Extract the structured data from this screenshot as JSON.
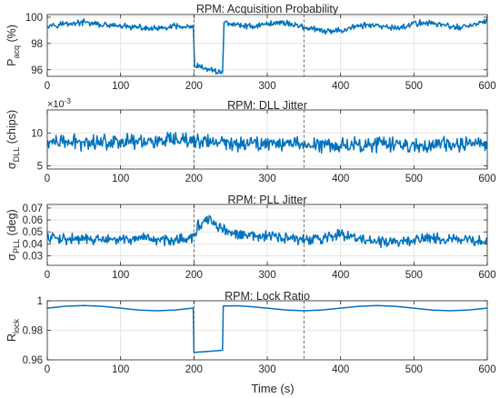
{
  "figure": {
    "xlabel": "Time (s)"
  },
  "colors": {
    "line": "#0072BD",
    "axis": "#262626",
    "grid": "#dedede",
    "marker": "#555555"
  },
  "chart_data": [
    {
      "type": "line",
      "title": "RPM: Acquisition Probability",
      "ylabel": {
        "base": "P",
        "sub": "acq",
        "unit": " (%)"
      },
      "exponent": null,
      "xlim": [
        0,
        600
      ],
      "ylim": [
        95.5,
        100.2
      ],
      "xticks": [
        0,
        100,
        200,
        300,
        400,
        500,
        600
      ],
      "yticks": [
        96,
        98,
        100
      ],
      "ytick_labels": [
        "96",
        "98",
        "100"
      ],
      "grid": true,
      "vlines": [
        200,
        350
      ],
      "series": [
        {
          "x": [
            0,
            25,
            50,
            75,
            100,
            125,
            150,
            175,
            199,
            201,
            215,
            230,
            239,
            241,
            260,
            280,
            300,
            320,
            340,
            360,
            380,
            400,
            420,
            440,
            460,
            480,
            500,
            520,
            540,
            560,
            580,
            599
          ],
          "y": [
            99.4,
            99.5,
            99.6,
            99.4,
            99.3,
            99.2,
            99.1,
            99.3,
            99.2,
            96.3,
            96.1,
            95.9,
            95.8,
            99.6,
            99.4,
            99.3,
            99.5,
            99.6,
            99.4,
            99.1,
            98.9,
            99.0,
            99.3,
            99.4,
            99.2,
            99.2,
            99.5,
            99.6,
            99.4,
            99.2,
            99.4,
            99.7
          ],
          "noise": 0.28
        }
      ]
    },
    {
      "type": "line",
      "title": "RPM: DLL Jitter",
      "ylabel": {
        "base": "σ",
        "sub": "DLL",
        "unit": " (chips)"
      },
      "exponent": "×10",
      "exponent_power": "-3",
      "xlim": [
        0,
        600
      ],
      "ylim": [
        4.5,
        13.5
      ],
      "xticks": [
        0,
        100,
        200,
        300,
        400,
        500,
        600
      ],
      "yticks": [
        5,
        10
      ],
      "ytick_labels": [
        "5",
        "10"
      ],
      "grid": true,
      "vlines": [
        200,
        350
      ],
      "series": [
        {
          "x": [
            0,
            50,
            100,
            150,
            200,
            250,
            300,
            350,
            400,
            450,
            500,
            550,
            599
          ],
          "y": [
            8.5,
            8.6,
            8.8,
            8.7,
            8.8,
            8.4,
            8.5,
            8.3,
            8.2,
            8.3,
            8.1,
            8.2,
            8.4
          ],
          "noise": 1.4
        }
      ]
    },
    {
      "type": "line",
      "title": "RPM: PLL Jitter",
      "ylabel": {
        "base": "σ",
        "sub": "PLL",
        "unit": " (deg)"
      },
      "exponent": null,
      "xlim": [
        0,
        600
      ],
      "ylim": [
        0.022,
        0.073
      ],
      "xticks": [
        0,
        100,
        200,
        300,
        400,
        500,
        600
      ],
      "yticks": [
        0.03,
        0.04,
        0.05,
        0.06,
        0.07
      ],
      "ytick_labels": [
        "0.03",
        "0.04",
        "0.05",
        "0.06",
        "0.07"
      ],
      "grid": true,
      "vlines": [
        200,
        350
      ],
      "series": [
        {
          "x": [
            0,
            40,
            80,
            120,
            160,
            199,
            205,
            220,
            240,
            260,
            300,
            340,
            360,
            400,
            440,
            480,
            520,
            560,
            599
          ],
          "y": [
            0.045,
            0.044,
            0.043,
            0.044,
            0.043,
            0.045,
            0.055,
            0.06,
            0.052,
            0.047,
            0.046,
            0.044,
            0.043,
            0.048,
            0.042,
            0.041,
            0.046,
            0.043,
            0.042
          ],
          "noise": 0.0055
        }
      ]
    },
    {
      "type": "line",
      "title": "RPM: Lock Ratio",
      "ylabel": {
        "base": "R",
        "sub": "lock",
        "unit": ""
      },
      "exponent": null,
      "xlim": [
        0,
        600
      ],
      "ylim": [
        0.96,
        1.0
      ],
      "xticks": [
        0,
        100,
        200,
        300,
        400,
        500,
        600
      ],
      "yticks": [
        0.96,
        0.98,
        1.0
      ],
      "ytick_labels": [
        "0.96",
        "0.98",
        "1"
      ],
      "grid": true,
      "vlines": [
        200,
        350
      ],
      "series": [
        {
          "x": [
            0,
            25,
            50,
            75,
            100,
            125,
            150,
            175,
            199,
            200,
            239,
            240,
            260,
            280,
            300,
            325,
            350,
            375,
            400,
            425,
            450,
            475,
            500,
            525,
            550,
            575,
            600
          ],
          "y": [
            0.995,
            0.9963,
            0.9968,
            0.9962,
            0.995,
            0.9937,
            0.9932,
            0.9938,
            0.9951,
            0.965,
            0.9665,
            0.9965,
            0.9966,
            0.9959,
            0.995,
            0.9938,
            0.9932,
            0.9938,
            0.995,
            0.9962,
            0.9968,
            0.9962,
            0.995,
            0.9937,
            0.9932,
            0.9938,
            0.995
          ],
          "noise": 0
        }
      ]
    }
  ]
}
